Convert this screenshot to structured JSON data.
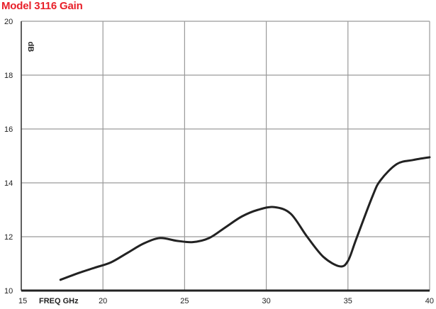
{
  "chart_data": {
    "type": "line",
    "title": "Model 3116 Gain",
    "xlabel": "FREQ GHz",
    "ylabel": "dB",
    "xlim": [
      15,
      40
    ],
    "ylim": [
      10,
      20
    ],
    "x_ticks": [
      15,
      20,
      25,
      30,
      35,
      40
    ],
    "y_ticks": [
      10,
      12,
      14,
      16,
      18,
      20
    ],
    "grid": true,
    "colors": {
      "title": "#e8202a",
      "line": "#222222",
      "grid": "#9a9a9a"
    },
    "series": [
      {
        "x": [
          17.4,
          18.5,
          19.5,
          20.5,
          21.5,
          22.5,
          23.5,
          24.5,
          25.5,
          26.5,
          27.5,
          28.5,
          29.5,
          30.5,
          31.5,
          32.5,
          33.5,
          34.5,
          35.0,
          35.5,
          36.5,
          37.0,
          38.0,
          39.0,
          40.0
        ],
        "y": [
          10.4,
          10.65,
          10.85,
          11.05,
          11.4,
          11.75,
          11.95,
          11.85,
          11.8,
          11.95,
          12.35,
          12.75,
          13.0,
          13.1,
          12.85,
          12.0,
          11.25,
          10.9,
          11.1,
          11.9,
          13.5,
          14.1,
          14.7,
          14.85,
          14.95
        ]
      }
    ]
  }
}
